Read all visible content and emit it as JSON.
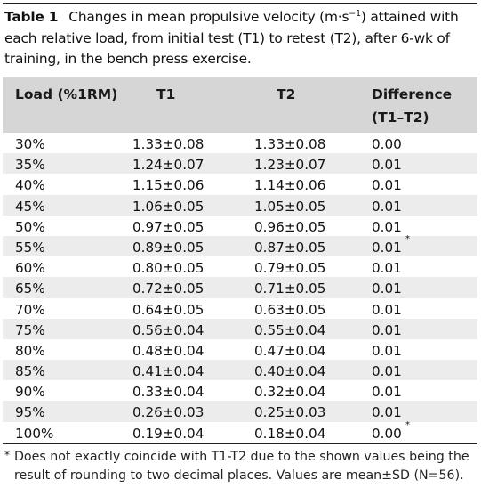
{
  "caption": {
    "label": "Table 1",
    "text_before": "Changes in mean propulsive velocity (m·s",
    "sup": "−1",
    "text_after": ") attained with each relative load, from initial test (T1) to retest (T2), after 6-wk of training, in the bench press exercise."
  },
  "header": {
    "col0": "Load (%1RM)",
    "col1": "T1",
    "col2": "T2",
    "col3_line1": "Difference",
    "col3_line2": "(T1–T2)"
  },
  "rows": [
    {
      "load": "30%",
      "t1": "1.33±0.08",
      "t2": "1.33±0.08",
      "diff": "0.00",
      "mark": ""
    },
    {
      "load": "35%",
      "t1": "1.24±0.07",
      "t2": "1.23±0.07",
      "diff": "0.01",
      "mark": ""
    },
    {
      "load": "40%",
      "t1": "1.15±0.06",
      "t2": "1.14±0.06",
      "diff": "0.01",
      "mark": ""
    },
    {
      "load": "45%",
      "t1": "1.06±0.05",
      "t2": "1.05±0.05",
      "diff": "0.01",
      "mark": ""
    },
    {
      "load": "50%",
      "t1": "0.97±0.05",
      "t2": "0.96±0.05",
      "diff": "0.01",
      "mark": ""
    },
    {
      "load": "55%",
      "t1": "0.89±0.05",
      "t2": "0.87±0.05",
      "diff": "0.01",
      "mark": "*"
    },
    {
      "load": "60%",
      "t1": "0.80±0.05",
      "t2": "0.79±0.05",
      "diff": "0.01",
      "mark": ""
    },
    {
      "load": "65%",
      "t1": "0.72±0.05",
      "t2": "0.71±0.05",
      "diff": "0.01",
      "mark": ""
    },
    {
      "load": "70%",
      "t1": "0.64±0.05",
      "t2": "0.63±0.05",
      "diff": "0.01",
      "mark": ""
    },
    {
      "load": "75%",
      "t1": "0.56±0.04",
      "t2": "0.55±0.04",
      "diff": "0.01",
      "mark": ""
    },
    {
      "load": "80%",
      "t1": "0.48±0.04",
      "t2": "0.47±0.04",
      "diff": "0.01",
      "mark": ""
    },
    {
      "load": "85%",
      "t1": "0.41±0.04",
      "t2": "0.40±0.04",
      "diff": "0.01",
      "mark": ""
    },
    {
      "load": "90%",
      "t1": "0.33±0.04",
      "t2": "0.32±0.04",
      "diff": "0.01",
      "mark": ""
    },
    {
      "load": "95%",
      "t1": "0.26±0.03",
      "t2": "0.25±0.03",
      "diff": "0.01",
      "mark": ""
    },
    {
      "load": "100%",
      "t1": "0.19±0.04",
      "t2": "0.18±0.04",
      "diff": "0.00",
      "mark": "*"
    }
  ],
  "footnote": {
    "mark": "*",
    "text": "Does not exactly coincide with T1-T2 due to the shown values being the result of rounding to two decimal places. Values are mean±SD (N=56)."
  },
  "colors": {
    "header_bg": "#d6d6d6",
    "stripe_bg": "#ececec"
  }
}
